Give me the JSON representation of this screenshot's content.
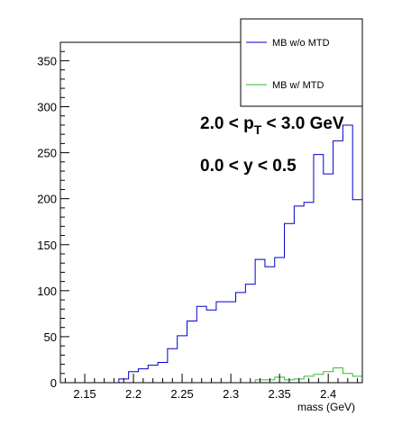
{
  "chart_data": {
    "type": "line",
    "title": "",
    "xlabel": "mass (GeV)",
    "ylabel": "",
    "xlim": [
      2.125,
      2.435
    ],
    "ylim": [
      0,
      370
    ],
    "xticks": [
      "2.15",
      "2.2",
      "2.25",
      "2.3",
      "2.35",
      "2.4"
    ],
    "xtick_values": [
      2.15,
      2.2,
      2.25,
      2.3,
      2.35,
      2.4
    ],
    "yticks": [
      "0",
      "50",
      "100",
      "150",
      "200",
      "250",
      "300",
      "350"
    ],
    "ytick_values": [
      0,
      50,
      100,
      150,
      200,
      250,
      300,
      350
    ],
    "bin_edges": [
      2.185,
      2.195,
      2.205,
      2.215,
      2.225,
      2.235,
      2.245,
      2.255,
      2.265,
      2.275,
      2.285,
      2.295,
      2.305,
      2.315,
      2.325,
      2.335,
      2.345,
      2.355,
      2.365,
      2.375,
      2.385,
      2.395,
      2.405,
      2.415,
      2.425,
      2.435
    ],
    "series": [
      {
        "name": "MB w/o MTD",
        "color": "#0000cc",
        "values": [
          4,
          12,
          15,
          19,
          22,
          37,
          51,
          67,
          83,
          79,
          88,
          88,
          98,
          107,
          134,
          126,
          136,
          173,
          192,
          196,
          248,
          227,
          263,
          280,
          199
        ]
      },
      {
        "name": "MB w/ MTD",
        "color": "#33bb33",
        "values": [
          0,
          0,
          0,
          0,
          0,
          0,
          0,
          0,
          0,
          0,
          0,
          0,
          0,
          0,
          3,
          3,
          6,
          3,
          4,
          7,
          9,
          12,
          16,
          10,
          7
        ]
      }
    ],
    "legend": {
      "placement": "top-right",
      "entries": [
        "MB w/o MTD",
        "MB w/ MTD"
      ]
    },
    "annotations": {
      "pt_prefix": "2.0 < p",
      "pt_sub": "T",
      "pt_suffix": " < 3.0 GeV",
      "y_range": "0.0 < y < 0.5"
    },
    "grid": false
  }
}
